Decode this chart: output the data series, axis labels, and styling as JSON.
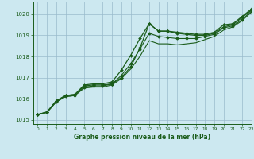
{
  "title": "Graphe pression niveau de la mer (hPa)",
  "background_color": "#cce8f0",
  "grid_color": "#99bbcc",
  "line_color": "#1a5c1a",
  "xlim": [
    -0.5,
    23
  ],
  "ylim": [
    1014.8,
    1020.6
  ],
  "yticks": [
    1015,
    1016,
    1017,
    1018,
    1019,
    1020
  ],
  "xticks": [
    0,
    1,
    2,
    3,
    4,
    5,
    6,
    7,
    8,
    9,
    10,
    11,
    12,
    13,
    14,
    15,
    16,
    17,
    18,
    19,
    20,
    21,
    22,
    23
  ],
  "line1_x": [
    0,
    1,
    2,
    3,
    4,
    5,
    6,
    7,
    8,
    9,
    10,
    11,
    12,
    13,
    14,
    15,
    16,
    17,
    18,
    19,
    20,
    21,
    22,
    23
  ],
  "line1_y": [
    1015.25,
    1015.37,
    1015.9,
    1016.15,
    1016.2,
    1016.6,
    1016.65,
    1016.65,
    1016.7,
    1017.0,
    1017.5,
    1018.4,
    1019.55,
    1019.2,
    1019.2,
    1019.15,
    1019.1,
    1019.05,
    1019.05,
    1019.15,
    1019.5,
    1019.55,
    1019.9,
    1020.25
  ],
  "line2_x": [
    0,
    1,
    2,
    3,
    4,
    5,
    6,
    7,
    8,
    9,
    10,
    11,
    12,
    13,
    14,
    15,
    16,
    17,
    18,
    19,
    20,
    21,
    22,
    23
  ],
  "line2_y": [
    1015.25,
    1015.37,
    1015.9,
    1016.15,
    1016.2,
    1016.65,
    1016.7,
    1016.7,
    1016.8,
    1017.35,
    1018.05,
    1018.85,
    1019.55,
    1019.2,
    1019.2,
    1019.1,
    1019.05,
    1019.0,
    1019.0,
    1019.1,
    1019.4,
    1019.5,
    1019.85,
    1020.2
  ],
  "line3_x": [
    0,
    1,
    2,
    3,
    4,
    5,
    6,
    7,
    8,
    9,
    10,
    11,
    12,
    13,
    14,
    15,
    16,
    17,
    18,
    19,
    20,
    21,
    22,
    23
  ],
  "line3_y": [
    1015.25,
    1015.35,
    1015.85,
    1016.1,
    1016.15,
    1016.55,
    1016.6,
    1016.6,
    1016.7,
    1017.1,
    1017.65,
    1018.35,
    1019.1,
    1018.95,
    1018.9,
    1018.85,
    1018.85,
    1018.85,
    1018.95,
    1019.05,
    1019.35,
    1019.45,
    1019.75,
    1020.15
  ],
  "line4_x": [
    0,
    1,
    2,
    3,
    4,
    5,
    6,
    7,
    8,
    9,
    10,
    11,
    12,
    13,
    14,
    15,
    16,
    17,
    18,
    19,
    20,
    21,
    22,
    23
  ],
  "line4_y": [
    1015.25,
    1015.35,
    1015.85,
    1016.1,
    1016.15,
    1016.5,
    1016.55,
    1016.55,
    1016.65,
    1016.95,
    1017.4,
    1018.0,
    1018.75,
    1018.6,
    1018.6,
    1018.55,
    1018.6,
    1018.65,
    1018.8,
    1018.95,
    1019.25,
    1019.4,
    1019.7,
    1020.1
  ]
}
